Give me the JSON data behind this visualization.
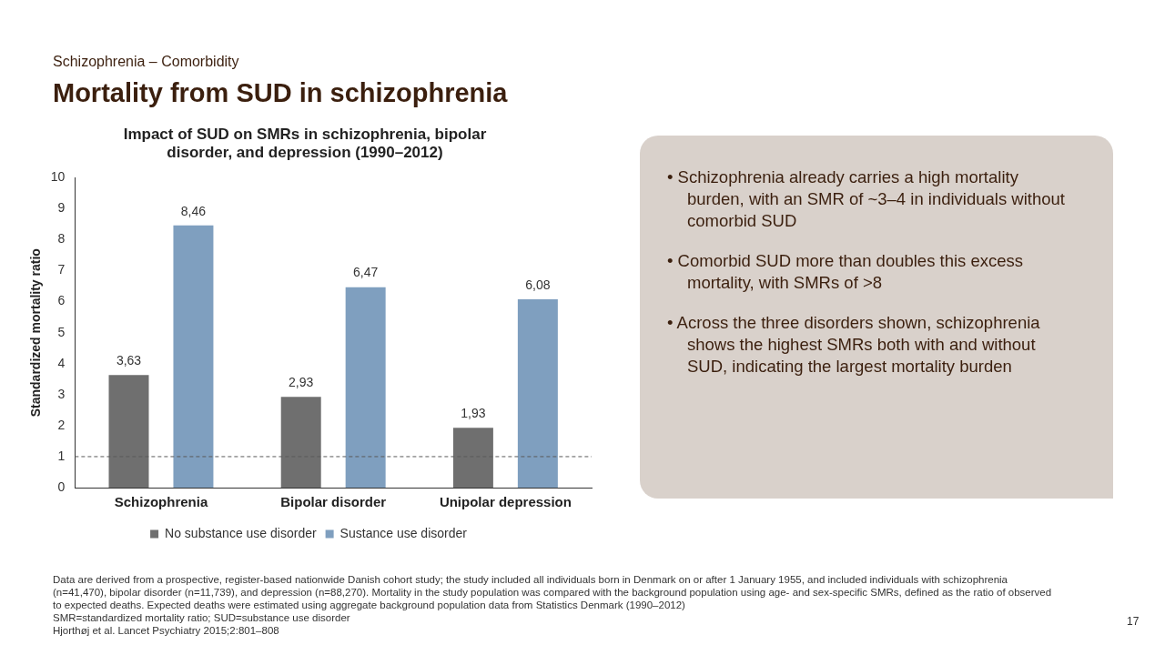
{
  "chart_data": {
    "type": "bar",
    "title": "Impact of SUD on SMRs in schizophrenia, bipolar disorder, and depression (1990–2012)",
    "ylabel": "Standardized mortality ratio",
    "categories": [
      "Schizophrenia",
      "Bipolar disorder",
      "Unipolar depression"
    ],
    "series": [
      {
        "name": "No substance use disorder",
        "color": "#6f6f6f",
        "values": [
          3.63,
          2.93,
          1.93
        ],
        "value_labels": [
          "3,63",
          "2,93",
          "1,93"
        ]
      },
      {
        "name": "Sustance use disorder",
        "color": "#7f9fbf",
        "values": [
          8.46,
          6.47,
          6.08
        ],
        "value_labels": [
          "8,46",
          "6,47",
          "6,08"
        ]
      }
    ],
    "ylim": [
      0,
      10
    ],
    "yticks": [
      0,
      1,
      2,
      3,
      4,
      5,
      6,
      7,
      8,
      9,
      10
    ],
    "grid": false,
    "legend": "bottom",
    "ref_lines": [
      {
        "axis": "y",
        "value": 1,
        "color": "#595959",
        "line_style": "dashed"
      }
    ],
    "annotations": [
      "Schizophrenia – Comorbidity",
      "Mortality from SUD in schizophrenia",
      "• Schizophrenia already carries a high mortality burden, with an SMR of ~3–4 in individuals without comorbid SUD",
      "• Comorbid SUD more than doubles this excess mortality, with SMRs of >8",
      "• Across the three disorders shown, schizophrenia shows the highest SMRs both with and without SUD, indicating the largest mortality burden",
      "Data are derived from a prospective, register-based nationwide Danish cohort study; the study included all individuals born in Denmark on or after 1 January 1955, and included individuals with schizophrenia (n=41,470), bipolar disorder (n=11,739), and depression (n=88,270). Mortality in the study population was compared with the background population using age- and sex-specific SMRs, defined as the ratio of observed to expected deaths. Expected deaths were estimated using aggregate background population data from Statistics Denmark (1990–2012)",
      "SMR=standardized mortality ratio; SUD=substance use disorder",
      "Hjorthøj et al. Lancet Psychiatry 2015;2:801–808",
      "17"
    ]
  }
}
